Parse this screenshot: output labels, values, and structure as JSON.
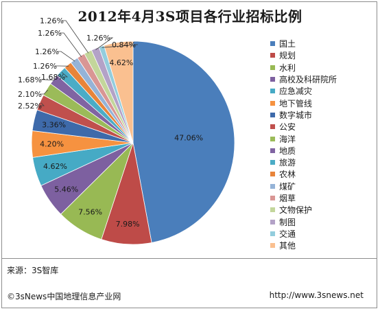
{
  "chart_data": {
    "type": "pie",
    "title": "2012年4月3S项目各行业招标比例",
    "legend_position": "right",
    "slices": [
      {
        "label": "国土",
        "value": 47.06,
        "value_label": "47.06%",
        "color": "#4a7ebb"
      },
      {
        "label": "规划",
        "value": 7.98,
        "value_label": "7.98%",
        "color": "#be4b48"
      },
      {
        "label": "水利",
        "value": 7.56,
        "value_label": "7.56%",
        "color": "#98b954"
      },
      {
        "label": "高校及科研院所",
        "value": 5.46,
        "value_label": "5.46%",
        "color": "#7d60a0"
      },
      {
        "label": "应急减灾",
        "value": 4.62,
        "value_label": "4.62%",
        "color": "#46aac5"
      },
      {
        "label": "地下管线",
        "value": 4.2,
        "value_label": "4.20%",
        "color": "#f69240"
      },
      {
        "label": "数字城市",
        "value": 3.36,
        "value_label": "3.36%",
        "color": "#3e6aaa"
      },
      {
        "label": "公安",
        "value": 2.52,
        "value_label": "2.52%",
        "color": "#c0504d"
      },
      {
        "label": "海洋",
        "value": 2.1,
        "value_label": "2.10%",
        "color": "#9bbb59"
      },
      {
        "label": "地质",
        "value": 1.68,
        "value_label": "1.68%",
        "color": "#8064a2"
      },
      {
        "label": "旅游",
        "value": 1.68,
        "value_label": "1.68%",
        "color": "#4bacc6"
      },
      {
        "label": "农林",
        "value": 1.26,
        "value_label": "1.26%",
        "color": "#e8843a"
      },
      {
        "label": "煤矿",
        "value": 1.26,
        "value_label": "1.26%",
        "color": "#95b3d7"
      },
      {
        "label": "烟草",
        "value": 1.26,
        "value_label": "1.26%",
        "color": "#d99694"
      },
      {
        "label": "文物保护",
        "value": 1.26,
        "value_label": "1.26%",
        "color": "#c3d69b"
      },
      {
        "label": "制图",
        "value": 1.26,
        "value_label": "1.26%",
        "color": "#b3a2c7"
      },
      {
        "label": "交通",
        "value": 0.84,
        "value_label": "0.84%",
        "color": "#93cddd"
      },
      {
        "label": "其他",
        "value": 4.62,
        "value_label": "4.62%",
        "color": "#fac090"
      }
    ]
  },
  "source": "来源：3S智库",
  "footer": {
    "left": "©3sNews中国地理信息产业网",
    "right": "http://www.3snews.net"
  }
}
